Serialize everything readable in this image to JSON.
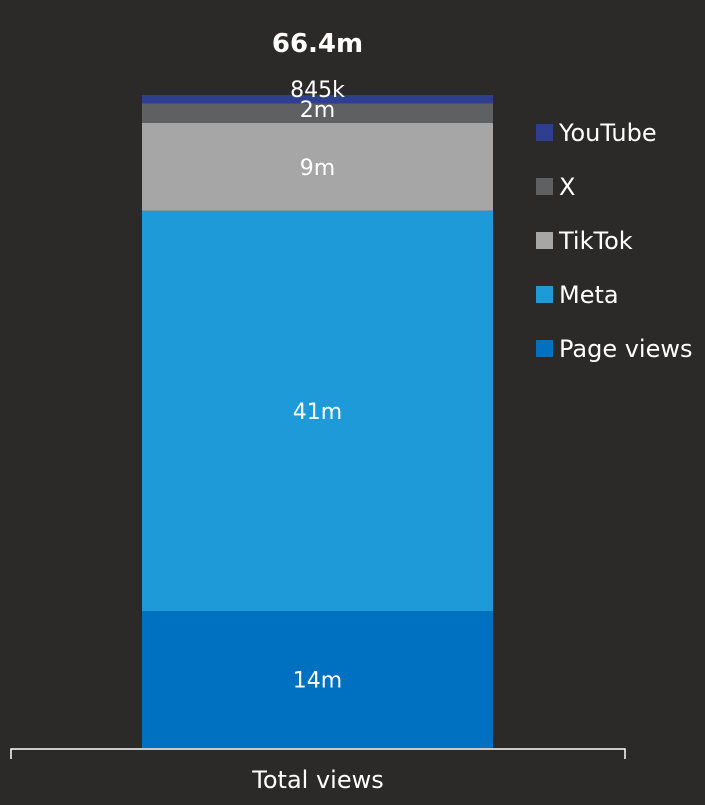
{
  "chart_data": {
    "type": "bar",
    "stacked": true,
    "orientation": "vertical",
    "categories": [
      "Total views"
    ],
    "total_label": "66.4m",
    "grid": false,
    "legend_placement": "right",
    "series": [
      {
        "name": "Page views",
        "values": [
          14000000
        ],
        "label": "14m",
        "color": "#0070c0"
      },
      {
        "name": "Meta",
        "values": [
          41000000
        ],
        "label": "41m",
        "color": "#1e9ad9"
      },
      {
        "name": "TikTok",
        "values": [
          9000000
        ],
        "label": "9m",
        "color": "#a6a6a6"
      },
      {
        "name": "X",
        "values": [
          2000000
        ],
        "label": "2m",
        "color": "#5f6062"
      },
      {
        "name": "YouTube",
        "values": [
          845000
        ],
        "label": "845k",
        "color": "#2e3f92"
      }
    ],
    "legend_order": [
      "YouTube",
      "X",
      "TikTok",
      "Meta",
      "Page views"
    ]
  }
}
